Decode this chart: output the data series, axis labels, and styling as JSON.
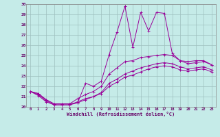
{
  "title": "",
  "xlabel": "Windchill (Refroidissement éolien,°C)",
  "xlim": [
    -0.5,
    23.5
  ],
  "ylim": [
    20,
    30
  ],
  "yticks": [
    20,
    21,
    22,
    23,
    24,
    25,
    26,
    27,
    28,
    29,
    30
  ],
  "xticks": [
    0,
    1,
    2,
    3,
    4,
    5,
    6,
    7,
    8,
    9,
    10,
    11,
    12,
    13,
    14,
    15,
    16,
    17,
    18,
    19,
    20,
    21,
    22,
    23
  ],
  "bg_color": "#c5ebe8",
  "line_color": "#990099",
  "grid_color": "#9ebfbe",
  "lines": [
    {
      "x": [
        0,
        1,
        2,
        3,
        4,
        5,
        6,
        7,
        8,
        9,
        10,
        11,
        12,
        13,
        14,
        15,
        16,
        17,
        18,
        19,
        20,
        21,
        22,
        23
      ],
      "y": [
        21.5,
        21.3,
        20.7,
        20.3,
        20.3,
        20.3,
        20.4,
        22.3,
        22.0,
        22.5,
        25.1,
        27.3,
        29.8,
        25.8,
        29.2,
        27.4,
        29.2,
        29.1,
        25.2,
        24.5,
        24.4,
        24.5,
        24.5,
        24.1
      ]
    },
    {
      "x": [
        0,
        1,
        2,
        3,
        4,
        5,
        6,
        7,
        8,
        9,
        10,
        11,
        12,
        13,
        14,
        15,
        16,
        17,
        18,
        19,
        20,
        21,
        22,
        23
      ],
      "y": [
        21.5,
        21.3,
        20.7,
        20.3,
        20.3,
        20.3,
        20.8,
        21.2,
        21.5,
        22.0,
        23.2,
        23.8,
        24.4,
        24.5,
        24.8,
        24.9,
        25.0,
        25.1,
        25.0,
        24.5,
        24.2,
        24.3,
        24.4,
        24.1
      ]
    },
    {
      "x": [
        0,
        1,
        2,
        3,
        4,
        5,
        6,
        7,
        8,
        9,
        10,
        11,
        12,
        13,
        14,
        15,
        16,
        17,
        18,
        19,
        20,
        21,
        22,
        23
      ],
      "y": [
        21.5,
        21.2,
        20.6,
        20.2,
        20.2,
        20.2,
        20.5,
        20.8,
        21.0,
        21.4,
        22.3,
        22.7,
        23.2,
        23.5,
        23.8,
        24.0,
        24.2,
        24.3,
        24.2,
        23.9,
        23.7,
        23.8,
        23.9,
        23.6
      ]
    },
    {
      "x": [
        0,
        1,
        2,
        3,
        4,
        5,
        6,
        7,
        8,
        9,
        10,
        11,
        12,
        13,
        14,
        15,
        16,
        17,
        18,
        19,
        20,
        21,
        22,
        23
      ],
      "y": [
        21.5,
        21.1,
        20.5,
        20.2,
        20.2,
        20.2,
        20.4,
        20.7,
        21.0,
        21.3,
        22.0,
        22.4,
        22.9,
        23.1,
        23.4,
        23.7,
        23.9,
        24.0,
        23.9,
        23.6,
        23.5,
        23.6,
        23.7,
        23.4
      ]
    }
  ]
}
